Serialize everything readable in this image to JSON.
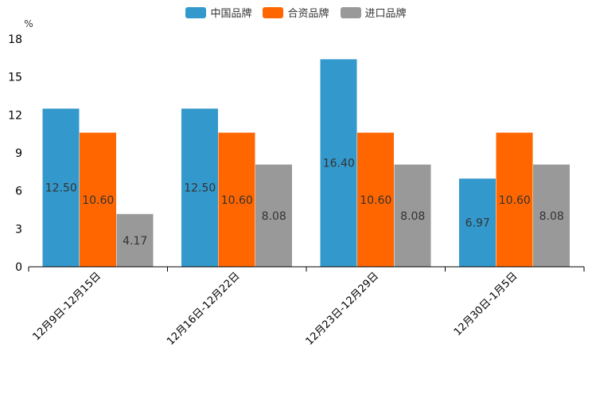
{
  "chart_data": {
    "type": "bar",
    "title": "",
    "xlabel": "",
    "ylabel": "%",
    "ylim": [
      0,
      18
    ],
    "yticks": [
      0,
      3,
      6,
      9,
      12,
      15,
      18
    ],
    "categories": [
      "12月9日-12月15日",
      "12月16日-12月22日",
      "12月23日-12月29日",
      "12月30日-1月5日"
    ],
    "series": [
      {
        "name": "中国品牌",
        "color": "#3399cc",
        "values": [
          12.5,
          12.5,
          16.4,
          6.97
        ],
        "labels": [
          "12.50",
          "12.50",
          "16.40",
          "6.97"
        ]
      },
      {
        "name": "合资品牌",
        "color": "#ff6600",
        "values": [
          10.6,
          10.6,
          10.6,
          10.6
        ],
        "labels": [
          "10.60",
          "10.60",
          "10.60",
          "10.60"
        ]
      },
      {
        "name": "进口品牌",
        "color": "#999999",
        "values": [
          4.17,
          8.08,
          8.08,
          8.08
        ],
        "labels": [
          "4.17",
          "8.08",
          "8.08",
          "8.08"
        ]
      }
    ],
    "legend_position": "top-center"
  }
}
